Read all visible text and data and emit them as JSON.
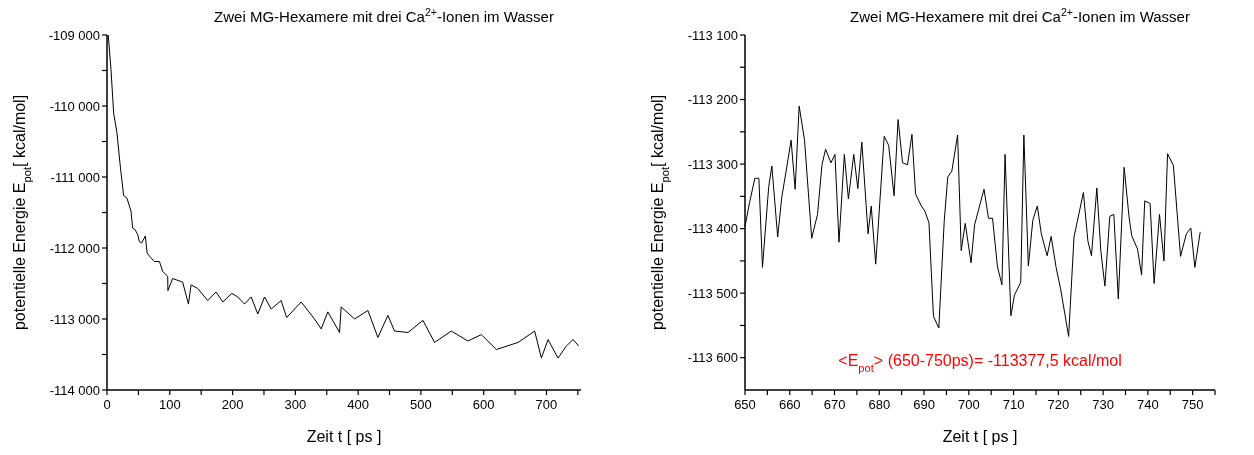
{
  "chart_data": [
    {
      "type": "line",
      "title": "Zwei MG-Hexamere mit drei Ca$^{2+}$-Ionen im Wasser",
      "xlabel": "Zeit t  [ ps ]",
      "ylabel": "potentielle Energie E$_{pot}$[ kcal/mol]",
      "xlim": [
        0,
        755
      ],
      "ylim": [
        -114000,
        -109000
      ],
      "xticks": [
        0,
        {
          "value": 50,
          "label": null
        },
        100,
        {
          "value": 150,
          "label": null
        },
        200,
        {
          "value": 250,
          "label": null
        },
        300,
        {
          "value": 350,
          "label": null
        },
        400,
        {
          "value": 450,
          "label": null
        },
        500,
        {
          "value": 550,
          "label": null
        },
        600,
        {
          "value": 650,
          "label": null
        },
        700,
        {
          "value": 750,
          "label": null
        }
      ],
      "yticks": [
        {
          "value": -114000,
          "label": "-114 000"
        },
        {
          "value": -113500,
          "label": null
        },
        {
          "value": -113000,
          "label": "-113 000"
        },
        {
          "value": -112500,
          "label": null
        },
        {
          "value": -112000,
          "label": "-112 000"
        },
        {
          "value": -111500,
          "label": null
        },
        {
          "value": -111000,
          "label": "-111 000"
        },
        {
          "value": -110500,
          "label": null
        },
        {
          "value": -110000,
          "label": "-110 000"
        },
        {
          "value": -109500,
          "label": null
        },
        {
          "value": -109000,
          "label": "-109 000"
        }
      ],
      "grid": false,
      "marker": "none",
      "line_style": "solid",
      "series": [
        {
          "color": "#000000",
          "x": [
            2,
            6.3,
            10.6,
            15.9,
            21.3,
            26.5,
            31.9,
            38.2,
            40.9,
            44.6,
            48.9,
            51.5,
            55.2,
            61.1,
            63.8,
            70.2,
            75.4,
            83.5,
            88.7,
            96.7,
            97,
            104.6,
            120.5,
            129.7,
            133.9,
            144.5,
            160.5,
            173.7,
            184.4,
            198.8,
            208.3,
            219,
            229.6,
            240.2,
            250.9,
            261.5,
            277.4,
            286.2,
            309.3,
            330.5,
            341.2,
            351.7,
            370.4,
            373,
            394.3,
            415.6,
            431.5,
            447.4,
            458.1,
            479.4,
            503.2,
            521.8,
            548.4,
            575,
            596.3,
            620.1,
            654.7,
            681.2,
            691.9,
            702.5,
            718.4,
            731.7,
            742.4,
            751.3
          ],
          "values": [
            -109000,
            -109480,
            -110100,
            -110380,
            -110860,
            -111260,
            -111300,
            -111480,
            -111720,
            -111740,
            -111810,
            -111910,
            -111930,
            -111830,
            -112070,
            -112140,
            -112190,
            -112190,
            -112330,
            -112400,
            -112600,
            -112430,
            -112480,
            -112790,
            -112520,
            -112570,
            -112740,
            -112620,
            -112760,
            -112640,
            -112690,
            -112790,
            -112690,
            -112930,
            -112690,
            -112860,
            -112740,
            -112980,
            -112760,
            -113000,
            -113140,
            -112900,
            -113190,
            -112830,
            -113000,
            -112880,
            -113260,
            -112950,
            -113170,
            -113190,
            -113020,
            -113330,
            -113170,
            -113310,
            -113220,
            -113430,
            -113330,
            -113170,
            -113550,
            -113290,
            -113550,
            -113380,
            -113290,
            -113380
          ]
        }
      ]
    },
    {
      "type": "line",
      "title": "Zwei MG-Hexamere mit drei Ca$^{2+}$-Ionen im Wasser",
      "xlabel": "Zeit t  [ ps ]",
      "ylabel": "potentielle Energie E$_{pot}$[ kcal/mol]",
      "xlim": [
        650,
        755
      ],
      "ylim": [
        -113650,
        -113100
      ],
      "xticks": [
        650,
        {
          "value": 655,
          "label": null
        },
        660,
        {
          "value": 665,
          "label": null
        },
        670,
        {
          "value": 675,
          "label": null
        },
        680,
        {
          "value": 685,
          "label": null
        },
        690,
        {
          "value": 695,
          "label": null
        },
        700,
        {
          "value": 705,
          "label": null
        },
        710,
        {
          "value": 715,
          "label": null
        },
        720,
        {
          "value": 725,
          "label": null
        },
        730,
        {
          "value": 735,
          "label": null
        },
        740,
        {
          "value": 745,
          "label": null
        },
        750,
        {
          "value": 755,
          "label": null
        }
      ],
      "yticks": [
        {
          "value": -113600,
          "label": "-113 600"
        },
        {
          "value": -113550,
          "label": null
        },
        {
          "value": -113500,
          "label": "-113 500"
        },
        {
          "value": -113450,
          "label": null
        },
        {
          "value": -113400,
          "label": "-113 400"
        },
        {
          "value": -113350,
          "label": null
        },
        {
          "value": -113300,
          "label": "-113 300"
        },
        {
          "value": -113250,
          "label": null
        },
        {
          "value": -113200,
          "label": "-113 200"
        },
        {
          "value": -113150,
          "label": null
        },
        {
          "value": -113100,
          "label": "-113 100"
        }
      ],
      "grid": false,
      "marker": "none",
      "line_style": "solid",
      "annotations": [
        "<E$_{pot}$> (650-750ps)= -113377,5 kcal/mol"
      ],
      "series": [
        {
          "color": "#000000",
          "x": [
            650,
            651,
            652.2,
            653.1,
            653.9,
            655.3,
            656,
            657.3,
            658.2,
            659.3,
            660.3,
            661.2,
            662.1,
            663.3,
            664.9,
            666.2,
            667.2,
            668,
            669.2,
            670.1,
            671,
            672.2,
            673.1,
            674.3,
            675.2,
            676.1,
            677.5,
            678.2,
            679.2,
            681.1,
            682.1,
            683.3,
            684.2,
            685.2,
            686.3,
            687.3,
            688.1,
            689.4,
            690.2,
            691.1,
            692.1,
            693.3,
            694.5,
            695.3,
            696.2,
            697.5,
            698.3,
            699.2,
            700.5,
            701.3,
            702.4,
            703.4,
            704.4,
            705.3,
            706.4,
            707.4,
            708.1,
            709.4,
            710.2,
            711.6,
            712.3,
            713.3,
            714.3,
            715.3,
            716.2,
            717.5,
            718.4,
            719.5,
            720.5,
            722.3,
            723.5,
            725.6,
            726.6,
            727.4,
            728.6,
            729.5,
            730.4,
            731.5,
            732.4,
            733.4,
            734.7,
            735.8,
            736.4,
            737.7,
            738.6,
            739.3,
            740.5,
            741.4,
            742.6,
            743.6,
            744.4,
            745.7,
            747.3,
            748.6,
            749.6,
            750.5,
            751.7
          ],
          "values": [
            -113397,
            -113360,
            -113322,
            -113322,
            -113460,
            -113335,
            -113303,
            -113413,
            -113352,
            -113306,
            -113263,
            -113339,
            -113210,
            -113263,
            -113415,
            -113378,
            -113301,
            -113277,
            -113298,
            -113285,
            -113421,
            -113285,
            -113354,
            -113285,
            -113338,
            -113266,
            -113408,
            -113365,
            -113455,
            -113257,
            -113271,
            -113349,
            -113231,
            -113298,
            -113301,
            -113254,
            -113346,
            -113365,
            -113373,
            -113391,
            -113536,
            -113554,
            -113389,
            -113320,
            -113311,
            -113255,
            -113434,
            -113392,
            -113453,
            -113394,
            -113365,
            -113339,
            -113384,
            -113384,
            -113459,
            -113487,
            -113285,
            -113535,
            -113503,
            -113483,
            -113255,
            -113458,
            -113387,
            -113365,
            -113408,
            -113442,
            -113412,
            -113460,
            -113493,
            -113567,
            -113413,
            -113344,
            -113419,
            -113442,
            -113337,
            -113435,
            -113489,
            -113381,
            -113378,
            -113509,
            -113305,
            -113382,
            -113411,
            -113432,
            -113472,
            -113357,
            -113361,
            -113485,
            -113378,
            -113450,
            -113284,
            -113302,
            -113443,
            -113408,
            -113399,
            -113460,
            -113405
          ]
        }
      ]
    }
  ]
}
